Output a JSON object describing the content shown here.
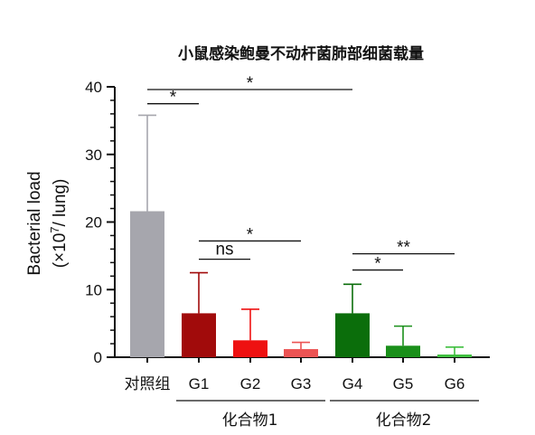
{
  "chart_data": {
    "type": "bar",
    "title": "小鼠感染鲍曼不动杆菌肺部细菌载量",
    "ylabel_line1": "Bacterial load",
    "ylabel_line2_pre": "(×10",
    "ylabel_line2_sup": "7",
    "ylabel_line2_post": "/ lung)",
    "ylim": [
      0,
      40
    ],
    "yticks": [
      "0",
      "10",
      "20",
      "30",
      "40"
    ],
    "categories": [
      "对照组",
      "G1",
      "G2",
      "G3",
      "G4",
      "G5",
      "G6"
    ],
    "values": [
      21.6,
      6.5,
      2.5,
      1.2,
      6.5,
      1.7,
      0.4
    ],
    "errors_upper": [
      35.8,
      12.5,
      7.1,
      2.2,
      10.8,
      4.6,
      1.5
    ],
    "colors": [
      "#a6a6ad",
      "#a10b0b",
      "#ee1111",
      "#ec5454",
      "#0b6e0b",
      "#1a8f1a",
      "#3fbf3f"
    ],
    "groups": [
      {
        "label": "化合物1",
        "from": 1,
        "to": 3
      },
      {
        "label": "化合物2",
        "from": 4,
        "to": 6
      }
    ],
    "annotations": [
      {
        "from": 0,
        "to": 1,
        "y": 37.5,
        "text": "*"
      },
      {
        "from": 0,
        "to": 4,
        "y": 39.6,
        "text": "*"
      },
      {
        "from": 1,
        "to": 2,
        "y": 14.5,
        "text": "ns"
      },
      {
        "from": 1,
        "to": 3,
        "y": 17.2,
        "text": "*"
      },
      {
        "from": 4,
        "to": 5,
        "y": 12.9,
        "text": "*"
      },
      {
        "from": 4,
        "to": 6,
        "y": 15.3,
        "text": "**"
      }
    ]
  }
}
